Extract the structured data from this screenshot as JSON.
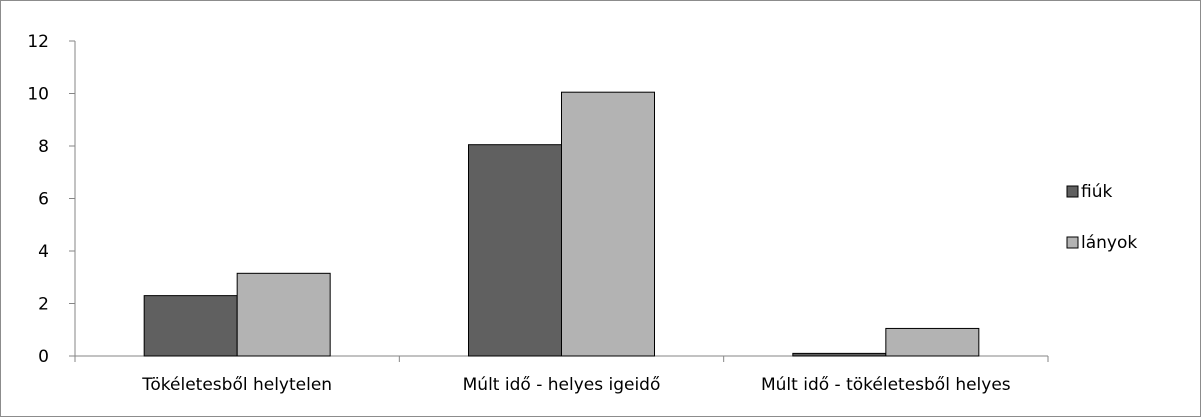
{
  "chart_data": {
    "type": "bar",
    "categories": [
      "Tökéletesből helytelen",
      "Múlt idő - helyes igeidő",
      "Múlt idő - tökéletesből helyes"
    ],
    "series": [
      {
        "name": "fiúk",
        "values": [
          2.3,
          8.05,
          0.1
        ],
        "color": "#606060"
      },
      {
        "name": "lányok",
        "values": [
          3.15,
          10.05,
          1.05
        ],
        "color": "#b3b3b3"
      }
    ],
    "y_ticks": [
      "0",
      "2",
      "4",
      "6",
      "8",
      "10",
      "12"
    ],
    "ylim": [
      0,
      12
    ],
    "grid": false,
    "legend_position": "right",
    "title": "",
    "xlabel": "",
    "ylabel": ""
  }
}
